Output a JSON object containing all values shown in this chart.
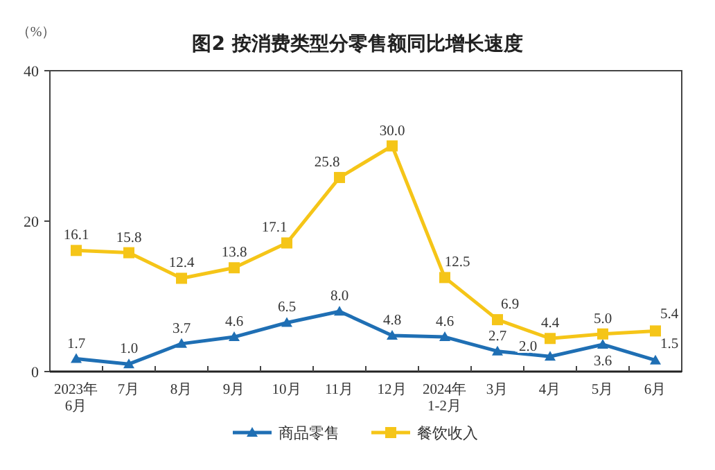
{
  "chart_data": {
    "type": "line",
    "title": "图2  按消费类型分零售额同比增长速度",
    "ylabel": "（%）",
    "categories": [
      "2023年\n6月",
      "7月",
      "8月",
      "9月",
      "10月",
      "11月",
      "12月",
      "2024年\n1-2月",
      "3月",
      "4月",
      "5月",
      "6月"
    ],
    "series": [
      {
        "name": "商品零售",
        "color": "#1f6fb4",
        "marker": "triangle",
        "values": [
          1.7,
          1.0,
          3.7,
          4.6,
          6.5,
          8.0,
          4.8,
          4.6,
          2.7,
          2.0,
          3.6,
          1.5
        ],
        "value_labels": [
          "1.7",
          "1.0",
          "3.7",
          "4.6",
          "6.5",
          "8.0",
          "4.8",
          "4.6",
          "2.7",
          "2.0",
          "3.6",
          "1.5"
        ]
      },
      {
        "name": "餐饮收入",
        "color": "#f5c518",
        "marker": "square",
        "values": [
          16.1,
          15.8,
          12.4,
          13.8,
          17.1,
          25.8,
          30.0,
          12.5,
          6.9,
          4.4,
          5.0,
          5.4
        ],
        "value_labels": [
          "16.1",
          "15.8",
          "12.4",
          "13.8",
          "17.1",
          "25.8",
          "30.0",
          "12.5",
          "6.9",
          "4.4",
          "5.0",
          "5.4"
        ]
      }
    ],
    "ylim": [
      0,
      40
    ],
    "yticks": [
      0,
      20,
      40
    ],
    "grid": false,
    "legend": "bottom"
  }
}
